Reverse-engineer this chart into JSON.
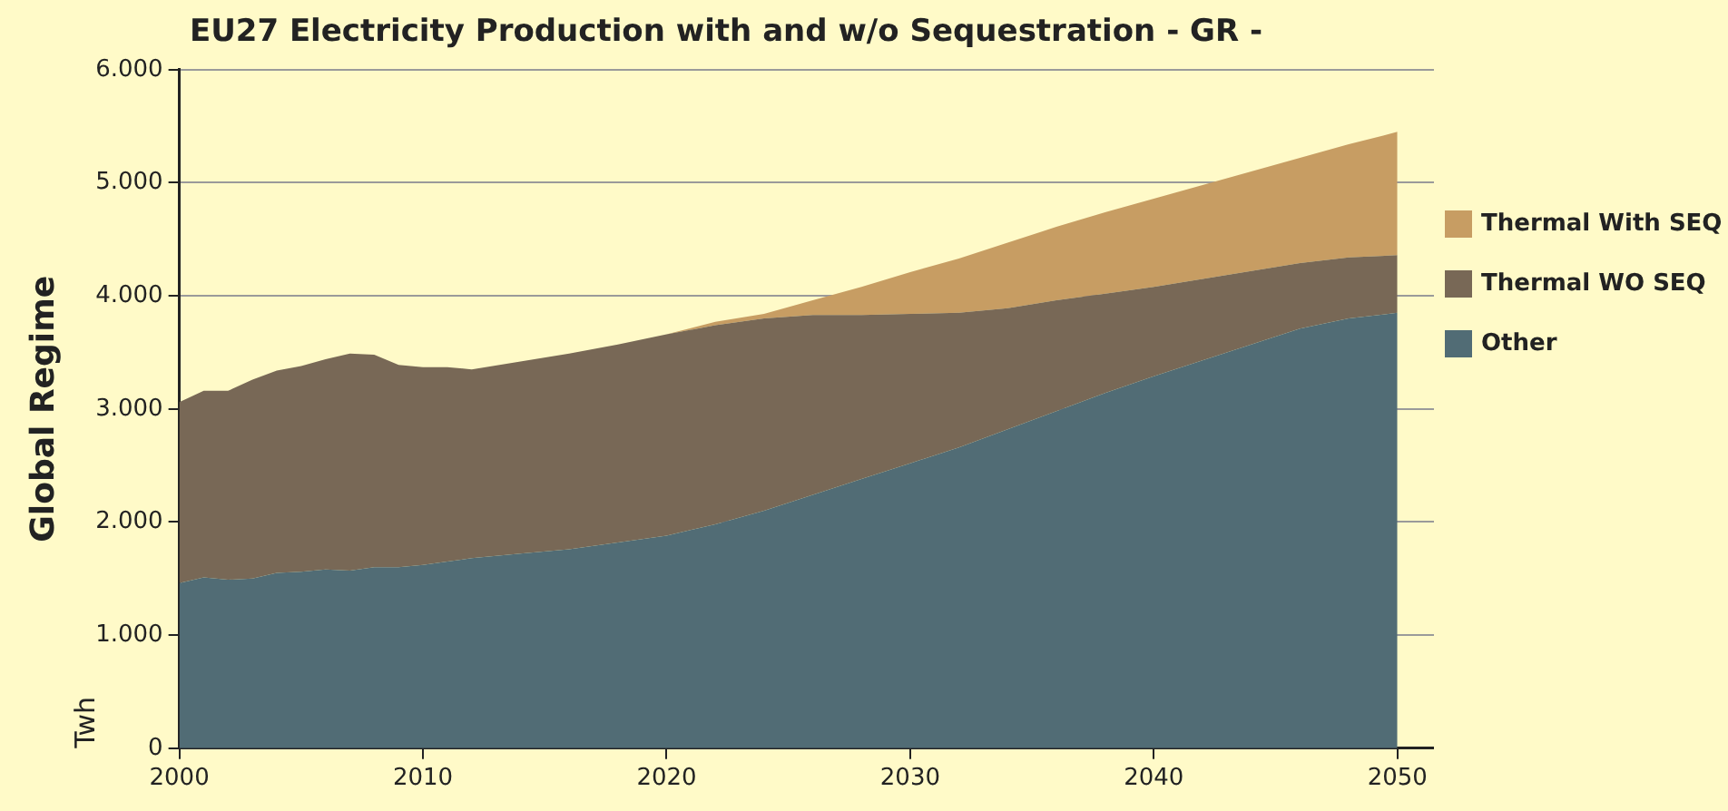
{
  "chart_data": {
    "type": "area",
    "stacked": true,
    "title": "EU27 Electricity Production with and w/o Sequestration - GR -",
    "ylabel": "Global Regime",
    "annotations": [
      "Twh"
    ],
    "x": [
      2000,
      2001,
      2002,
      2003,
      2004,
      2005,
      2006,
      2007,
      2008,
      2009,
      2010,
      2011,
      2012,
      2014,
      2016,
      2018,
      2020,
      2022,
      2024,
      2026,
      2028,
      2030,
      2032,
      2034,
      2036,
      2038,
      2040,
      2042,
      2044,
      2046,
      2048,
      2050
    ],
    "series": [
      {
        "name": "Other",
        "color": "#516c75",
        "values": [
          1460,
          1510,
          1490,
          1500,
          1550,
          1560,
          1580,
          1570,
          1600,
          1600,
          1620,
          1650,
          1680,
          1720,
          1760,
          1820,
          1880,
          1980,
          2100,
          2240,
          2380,
          2520,
          2660,
          2820,
          2980,
          3140,
          3290,
          3430,
          3570,
          3710,
          3800,
          3850
        ]
      },
      {
        "name": "Thermal WO SEQ",
        "color": "#786856",
        "values": [
          1600,
          1650,
          1670,
          1760,
          1790,
          1820,
          1860,
          1920,
          1880,
          1790,
          1750,
          1720,
          1670,
          1700,
          1730,
          1750,
          1780,
          1760,
          1700,
          1590,
          1450,
          1320,
          1190,
          1070,
          980,
          880,
          790,
          720,
          650,
          580,
          540,
          510
        ]
      },
      {
        "name": "Thermal With SEQ",
        "color": "#c79d63",
        "values": [
          0,
          0,
          0,
          0,
          0,
          0,
          0,
          0,
          0,
          0,
          0,
          0,
          0,
          0,
          0,
          0,
          0,
          30,
          40,
          130,
          250,
          370,
          480,
          580,
          650,
          720,
          780,
          830,
          880,
          930,
          1000,
          1090
        ]
      }
    ],
    "xlim": [
      2000,
      2051.5
    ],
    "xticks": [
      2000,
      2010,
      2020,
      2030,
      2040,
      2050
    ],
    "ylim": [
      0,
      6000
    ],
    "yticks": [
      {
        "value": 0,
        "label": "0"
      },
      {
        "value": 1000,
        "label": "1.000"
      },
      {
        "value": 2000,
        "label": "2.000"
      },
      {
        "value": 3000,
        "label": "3.000"
      },
      {
        "value": 4000,
        "label": "4.000"
      },
      {
        "value": 5000,
        "label": "5.000"
      },
      {
        "value": 6000,
        "label": "6.000"
      }
    ],
    "grid": "y",
    "legend": "right"
  }
}
